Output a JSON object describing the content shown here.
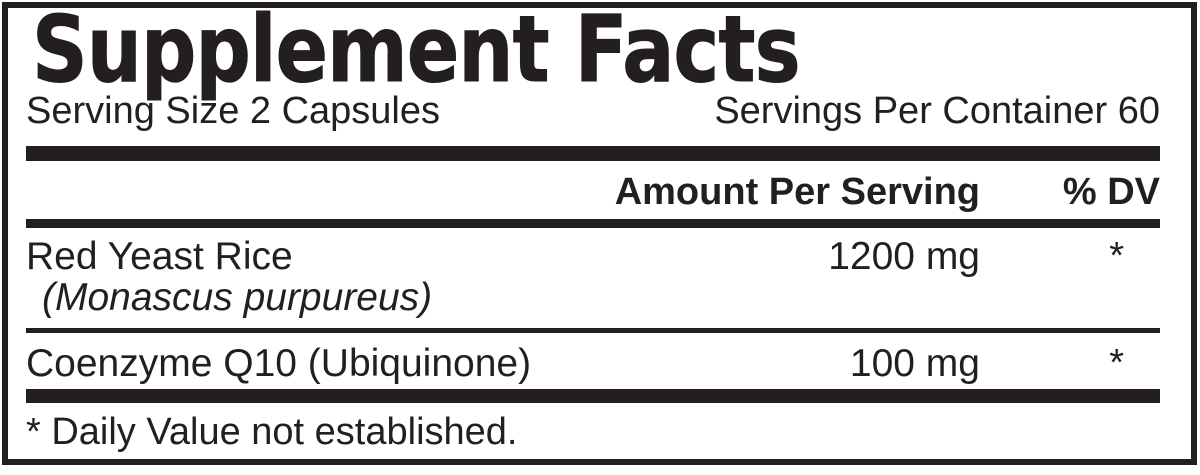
{
  "colors": {
    "ink": "#231f20",
    "paper": "#ffffff"
  },
  "label": {
    "title": "Supplement Facts",
    "serving": {
      "size": "Serving Size 2 Capsules",
      "per_container": "Servings Per Container 60"
    },
    "header": {
      "amount": "Amount Per Serving",
      "dv": "% DV"
    },
    "rows": [
      {
        "name": "Red Yeast Rice",
        "botanical": "(Monascus purpureus)",
        "amount": "1200 mg",
        "dv": "*"
      },
      {
        "name": "Coenzyme Q10 (Ubiquinone)",
        "amount": "100 mg",
        "dv": "*"
      }
    ],
    "footnote": "* Daily Value not established."
  }
}
